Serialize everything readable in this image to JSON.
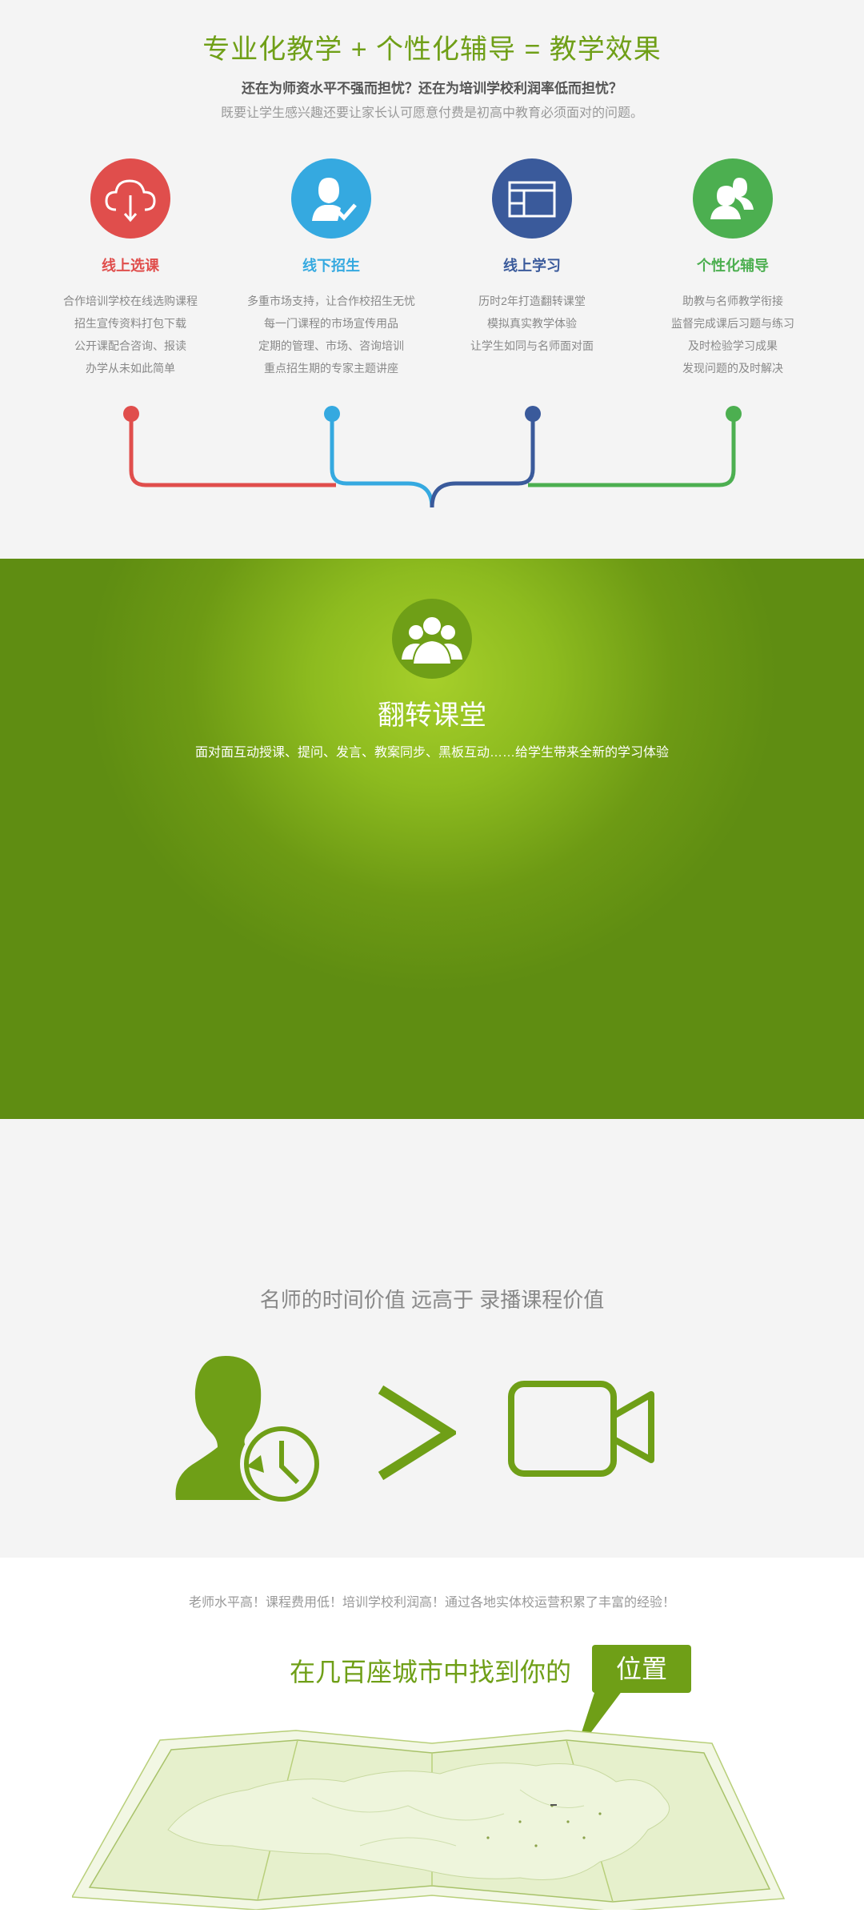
{
  "section1": {
    "title": "专业化教学 + 个性化辅导 = 教学效果",
    "subtitle1": "还在为师资水平不强而担忧？还在为培训学校利润率低而担忧？",
    "subtitle2": "既要让学生感兴趣还要让家长认可愿意付费是初高中教育必须面对的问题。",
    "features": [
      {
        "title": "线上选课",
        "color": "#e04e4c",
        "icon": "cloud-download-icon",
        "lines": [
          "合作培训学校在线选购课程",
          "招生宣传资料打包下载",
          "公开课配合咨询、报读",
          "办学从未如此简单"
        ]
      },
      {
        "title": "线下招生",
        "color": "#35a9e0",
        "icon": "user-check-icon",
        "lines": [
          "多重市场支持，让合作校招生无忧",
          "每一门课程的市场宣传用品",
          "定期的管理、市场、咨询培训",
          "重点招生期的专家主题讲座"
        ]
      },
      {
        "title": "线上学习",
        "color": "#3a5a9b",
        "icon": "layout-window-icon",
        "lines": [
          "历时2年打造翻转课堂",
          "模拟真实教学体验",
          "让学生如同与名师面对面"
        ]
      },
      {
        "title": "个性化辅导",
        "color": "#4caf50",
        "icon": "users-icon",
        "lines": [
          "助教与名师教学衔接",
          "监督完成课后习题与练习",
          "及时检验学习成果",
          "发现问题的及时解决"
        ]
      }
    ]
  },
  "section2": {
    "title": "翻转课堂",
    "description": "面对面互动授课、提问、发言、教案同步、黑板互动……给学生带来全新的学习体验",
    "icon": "group-icon"
  },
  "section3": {
    "title": "名师的时间价值 远高于 录播课程价值",
    "icons": [
      "teacher-clock-icon",
      "greater-than-icon",
      "video-camera-icon"
    ]
  },
  "section4": {
    "description": "老师水平高！课程费用低！培训学校利润高！通过各地实体校运营积累了丰富的经验！",
    "headline": "在几百座城市中找到你的",
    "bubble": "位置",
    "icon": "china-map-icon"
  }
}
